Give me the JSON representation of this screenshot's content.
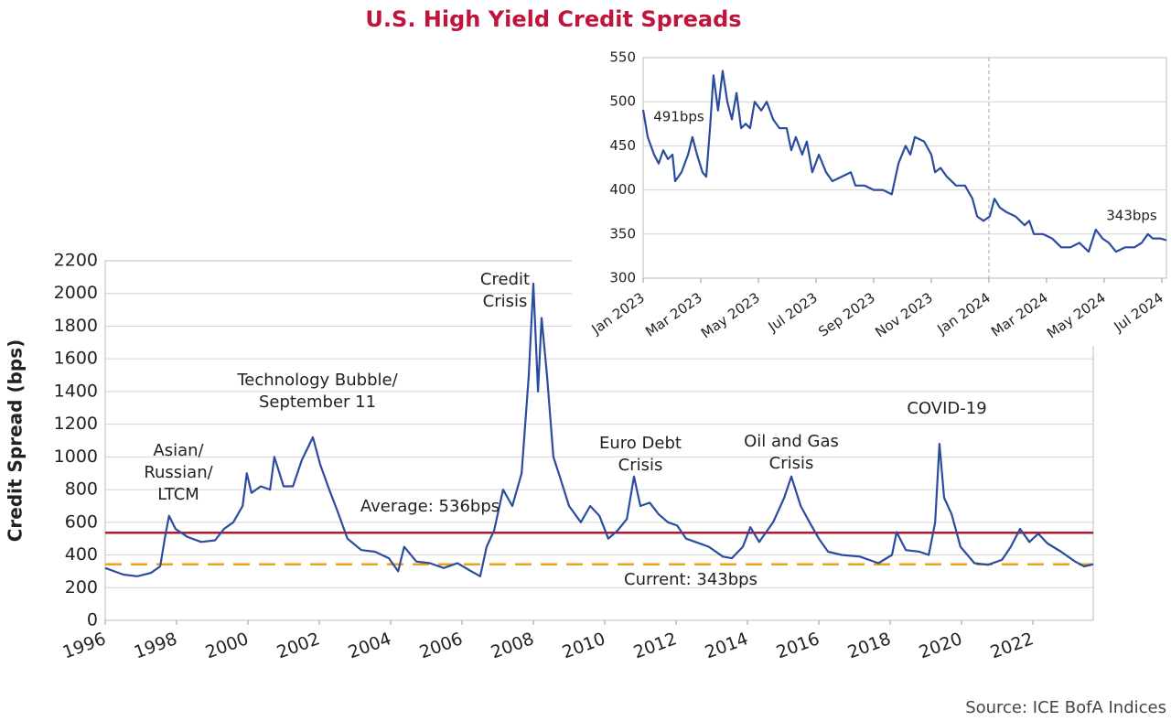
{
  "title": "U.S. High Yield Credit Spreads",
  "source": "Source: ICE BofA Indices",
  "chart_data": [
    {
      "type": "line",
      "ylabel": "Credit Spread (bps)",
      "x": [
        1996.0,
        1996.51,
        1996.9,
        1997.28,
        1997.54,
        1997.67,
        1997.79,
        1997.97,
        1998.31,
        1998.69,
        1999.08,
        1999.33,
        1999.59,
        1999.85,
        1999.97,
        2000.1,
        2000.36,
        2000.62,
        2000.74,
        2001.0,
        2001.26,
        2001.51,
        2001.82,
        2002.03,
        2002.28,
        2002.54,
        2002.79,
        2003.18,
        2003.56,
        2003.95,
        2004.21,
        2004.38,
        2004.72,
        2005.1,
        2005.49,
        2005.87,
        2006.26,
        2006.51,
        2006.69,
        2006.9,
        2007.15,
        2007.41,
        2007.67,
        2007.87,
        2008.0,
        2008.13,
        2008.23,
        2008.38,
        2008.56,
        2008.74,
        2009.0,
        2009.33,
        2009.59,
        2009.85,
        2010.1,
        2010.36,
        2010.62,
        2010.82,
        2011.0,
        2011.26,
        2011.51,
        2011.77,
        2012.03,
        2012.28,
        2012.54,
        2012.92,
        2013.31,
        2013.56,
        2013.87,
        2014.08,
        2014.33,
        2014.72,
        2015.03,
        2015.23,
        2015.49,
        2015.74,
        2016.0,
        2016.26,
        2016.64,
        2017.15,
        2017.67,
        2018.05,
        2018.18,
        2018.44,
        2018.82,
        2019.08,
        2019.26,
        2019.38,
        2019.51,
        2019.72,
        2019.97,
        2020.36,
        2020.74,
        2021.13,
        2021.38,
        2021.64,
        2021.9,
        2022.15,
        2022.41,
        2022.79,
        2023.18,
        2023.44,
        2023.69
      ],
      "values": [
        320,
        280,
        270,
        290,
        330,
        500,
        640,
        560,
        510,
        480,
        490,
        560,
        600,
        700,
        900,
        780,
        820,
        800,
        1000,
        820,
        820,
        980,
        1120,
        950,
        800,
        650,
        500,
        430,
        420,
        380,
        300,
        450,
        360,
        350,
        320,
        350,
        300,
        270,
        450,
        550,
        800,
        700,
        900,
        1500,
        2060,
        1400,
        1850,
        1500,
        1000,
        880,
        700,
        600,
        700,
        640,
        500,
        550,
        620,
        880,
        700,
        720,
        650,
        600,
        580,
        500,
        480,
        450,
        390,
        380,
        450,
        570,
        480,
        600,
        750,
        880,
        700,
        600,
        500,
        420,
        400,
        390,
        350,
        400,
        540,
        430,
        420,
        400,
        600,
        1080,
        750,
        650,
        450,
        350,
        340,
        370,
        450,
        560,
        480,
        530,
        470,
        420,
        360,
        330,
        343
      ],
      "color": "#2b4c9e",
      "xlim": [
        1996,
        2023.69
      ],
      "xticks": [
        1996,
        1998,
        2000,
        2002,
        2004,
        2006,
        2008,
        2010,
        2012,
        2014,
        2016,
        2018,
        2020,
        2022
      ],
      "ylim": [
        0,
        2200
      ],
      "yticks": [
        0,
        200,
        400,
        600,
        800,
        1000,
        1200,
        1400,
        1600,
        1800,
        2000,
        2200
      ],
      "grid": true,
      "reference_lines": [
        {
          "label": "Average: 536bps",
          "value": 536,
          "color": "#b5172f",
          "style": "solid"
        },
        {
          "label": "Current: 343bps",
          "value": 343,
          "color": "#e8a41c",
          "style": "dashed"
        }
      ],
      "annotations": [
        [
          "Asian/",
          "Russian/",
          "LTCM"
        ],
        [
          "Technology Bubble/",
          "September 11"
        ],
        [
          "Credit",
          "Crisis"
        ],
        [
          "Euro Debt",
          "Crisis"
        ],
        [
          "Oil and Gas",
          "Crisis"
        ],
        [
          "COVID-19"
        ]
      ]
    },
    {
      "type": "line",
      "x": [
        0,
        0.16,
        0.38,
        0.54,
        0.7,
        0.86,
        1.02,
        1.11,
        1.33,
        1.56,
        1.71,
        1.87,
        2.06,
        2.19,
        2.32,
        2.44,
        2.6,
        2.76,
        2.92,
        3.08,
        3.24,
        3.4,
        3.56,
        3.71,
        3.87,
        4.1,
        4.29,
        4.51,
        4.73,
        4.98,
        5.14,
        5.3,
        5.52,
        5.68,
        5.87,
        6.1,
        6.35,
        6.57,
        6.89,
        7.21,
        7.37,
        7.68,
        8.0,
        8.32,
        8.63,
        8.86,
        9.11,
        9.27,
        9.43,
        9.75,
        10.0,
        10.13,
        10.32,
        10.54,
        10.86,
        11.17,
        11.43,
        11.59,
        11.81,
        12.03,
        12.19,
        12.38,
        12.6,
        12.92,
        13.24,
        13.4,
        13.56,
        13.87,
        14.19,
        14.51,
        14.83,
        15.14,
        15.46,
        15.71,
        15.94,
        16.16,
        16.41,
        16.73,
        17.05,
        17.3,
        17.52,
        17.68,
        17.94,
        18.16
      ],
      "values": [
        491,
        460,
        440,
        430,
        445,
        435,
        440,
        410,
        420,
        440,
        460,
        440,
        420,
        415,
        470,
        530,
        490,
        535,
        500,
        480,
        510,
        470,
        475,
        470,
        500,
        490,
        500,
        480,
        470,
        470,
        445,
        460,
        440,
        455,
        420,
        440,
        420,
        410,
        415,
        420,
        405,
        405,
        400,
        400,
        395,
        430,
        450,
        440,
        460,
        455,
        440,
        420,
        425,
        415,
        405,
        405,
        390,
        370,
        365,
        370,
        390,
        380,
        375,
        370,
        360,
        365,
        350,
        350,
        345,
        335,
        335,
        340,
        330,
        355,
        345,
        340,
        330,
        335,
        335,
        340,
        350,
        345,
        345,
        343
      ],
      "color": "#2b4c9e",
      "xlim": [
        0,
        18.16
      ],
      "xticks": [
        {
          "value": 0,
          "label": "Jan 2023"
        },
        {
          "value": 2,
          "label": "Mar 2023"
        },
        {
          "value": 4,
          "label": "May 2023"
        },
        {
          "value": 6,
          "label": "Jul 2023"
        },
        {
          "value": 8,
          "label": "Sep 2023"
        },
        {
          "value": 10,
          "label": "Nov 2023"
        },
        {
          "value": 12,
          "label": "Jan 2024"
        },
        {
          "value": 14,
          "label": "Mar 2024"
        },
        {
          "value": 16,
          "label": "May 2024"
        },
        {
          "value": 18,
          "label": "Jul 2024"
        }
      ],
      "ylim": [
        300,
        550
      ],
      "yticks": [
        300,
        350,
        400,
        450,
        500,
        550
      ],
      "grid": true,
      "vline": 12,
      "annotations": [
        "491bps",
        "343bps"
      ]
    }
  ]
}
